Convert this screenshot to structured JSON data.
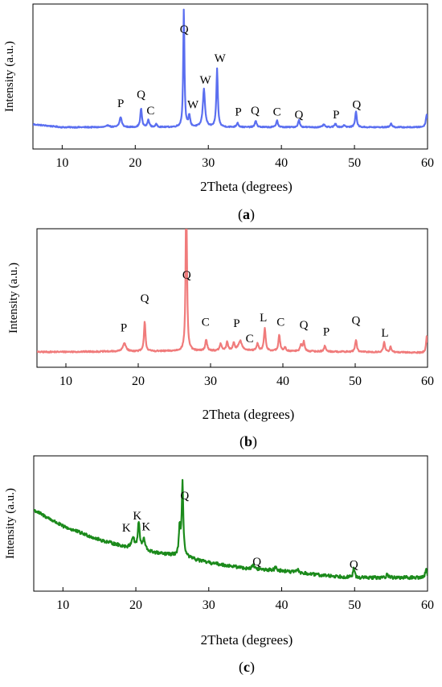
{
  "chart_data": [
    {
      "type": "line",
      "panel_label": "(a)",
      "panel_parts": [
        "(",
        "a",
        ")"
      ],
      "xlabel": "2Theta (degrees)",
      "ylabel": "Intensity (a.u.)",
      "xlim": [
        6,
        60
      ],
      "x_ticks": [
        10,
        20,
        30,
        40,
        50,
        60
      ],
      "color": "#5b6ff0",
      "baseline": 0.15,
      "noise": 0.004,
      "background": [
        [
          6,
          0.02
        ],
        [
          10,
          0.0
        ],
        [
          60,
          0.0
        ]
      ],
      "peaks": [
        {
          "x": 16.3,
          "h": 0.015,
          "w": 0.2
        },
        {
          "x": 18.0,
          "h": 0.07,
          "w": 0.18
        },
        {
          "x": 20.8,
          "h": 0.13,
          "w": 0.13
        },
        {
          "x": 21.8,
          "h": 0.05,
          "w": 0.15
        },
        {
          "x": 22.9,
          "h": 0.02,
          "w": 0.15
        },
        {
          "x": 26.65,
          "h": 0.82,
          "w": 0.1
        },
        {
          "x": 27.4,
          "h": 0.08,
          "w": 0.13
        },
        {
          "x": 29.4,
          "h": 0.26,
          "w": 0.18
        },
        {
          "x": 31.2,
          "h": 0.4,
          "w": 0.12
        },
        {
          "x": 34.0,
          "h": 0.03,
          "w": 0.15
        },
        {
          "x": 36.5,
          "h": 0.045,
          "w": 0.14
        },
        {
          "x": 39.4,
          "h": 0.05,
          "w": 0.13
        },
        {
          "x": 42.4,
          "h": 0.05,
          "w": 0.14
        },
        {
          "x": 45.8,
          "h": 0.02,
          "w": 0.15
        },
        {
          "x": 47.4,
          "h": 0.025,
          "w": 0.15
        },
        {
          "x": 48.6,
          "h": 0.015,
          "w": 0.15
        },
        {
          "x": 50.2,
          "h": 0.11,
          "w": 0.13
        },
        {
          "x": 55.0,
          "h": 0.025,
          "w": 0.15
        },
        {
          "x": 59.9,
          "h": 0.09,
          "w": 0.15
        }
      ],
      "clip_top": 0.97,
      "annotations": [
        {
          "text": "P",
          "x": 18.0,
          "y": 0.29
        },
        {
          "text": "Q",
          "x": 20.8,
          "y": 0.35
        },
        {
          "text": "C",
          "x": 22.1,
          "y": 0.24
        },
        {
          "text": "Q",
          "x": 26.7,
          "y": 0.8
        },
        {
          "text": "W",
          "x": 27.9,
          "y": 0.28
        },
        {
          "text": "W",
          "x": 29.6,
          "y": 0.45
        },
        {
          "text": "W",
          "x": 31.6,
          "y": 0.6
        },
        {
          "text": "P",
          "x": 34.1,
          "y": 0.23
        },
        {
          "text": "Q",
          "x": 36.4,
          "y": 0.24
        },
        {
          "text": "C",
          "x": 39.4,
          "y": 0.23
        },
        {
          "text": "Q",
          "x": 42.4,
          "y": 0.21
        },
        {
          "text": "P",
          "x": 47.5,
          "y": 0.21
        },
        {
          "text": "Q",
          "x": 50.3,
          "y": 0.28
        }
      ]
    },
    {
      "type": "line",
      "panel_label": "(b)",
      "panel_parts": [
        "(",
        "b",
        ")"
      ],
      "xlabel": "2Theta (degrees)",
      "ylabel": "Intensity (a.u.)",
      "xlim": [
        6,
        60
      ],
      "x_ticks": [
        10,
        20,
        30,
        40,
        50,
        60
      ],
      "color": "#f07b7b",
      "baseline": 0.1,
      "noise": 0.005,
      "background": [
        [
          6,
          0.01
        ],
        [
          20,
          0.015
        ],
        [
          34,
          0.02
        ],
        [
          60,
          0.005
        ]
      ],
      "peaks": [
        {
          "x": 18.1,
          "h": 0.06,
          "w": 0.25
        },
        {
          "x": 20.9,
          "h": 0.22,
          "w": 0.12
        },
        {
          "x": 26.65,
          "h": 1.3,
          "w": 0.1
        },
        {
          "x": 29.4,
          "h": 0.08,
          "w": 0.15
        },
        {
          "x": 31.4,
          "h": 0.05,
          "w": 0.15
        },
        {
          "x": 32.3,
          "h": 0.06,
          "w": 0.15
        },
        {
          "x": 33.2,
          "h": 0.05,
          "w": 0.15
        },
        {
          "x": 34.1,
          "h": 0.07,
          "w": 0.3
        },
        {
          "x": 36.5,
          "h": 0.05,
          "w": 0.15
        },
        {
          "x": 37.5,
          "h": 0.16,
          "w": 0.14
        },
        {
          "x": 39.5,
          "h": 0.12,
          "w": 0.13
        },
        {
          "x": 40.3,
          "h": 0.03,
          "w": 0.13
        },
        {
          "x": 42.5,
          "h": 0.05,
          "w": 0.13
        },
        {
          "x": 42.9,
          "h": 0.07,
          "w": 0.13
        },
        {
          "x": 45.8,
          "h": 0.04,
          "w": 0.15
        },
        {
          "x": 50.1,
          "h": 0.09,
          "w": 0.13
        },
        {
          "x": 54.0,
          "h": 0.07,
          "w": 0.14
        },
        {
          "x": 54.9,
          "h": 0.04,
          "w": 0.14
        },
        {
          "x": 59.9,
          "h": 0.12,
          "w": 0.12
        }
      ],
      "clip_top": 1.0,
      "annotations": [
        {
          "text": "P",
          "x": 18.0,
          "y": 0.26
        },
        {
          "text": "Q",
          "x": 20.9,
          "y": 0.47
        },
        {
          "text": "Q",
          "x": 26.7,
          "y": 0.64
        },
        {
          "text": "C",
          "x": 29.3,
          "y": 0.3
        },
        {
          "text": "P",
          "x": 33.6,
          "y": 0.29
        },
        {
          "text": "C",
          "x": 35.4,
          "y": 0.18
        },
        {
          "text": "L",
          "x": 37.3,
          "y": 0.33
        },
        {
          "text": "C",
          "x": 39.7,
          "y": 0.3
        },
        {
          "text": "Q",
          "x": 42.9,
          "y": 0.28
        },
        {
          "text": "P",
          "x": 46.0,
          "y": 0.23
        },
        {
          "text": "Q",
          "x": 50.1,
          "y": 0.31
        },
        {
          "text": "L",
          "x": 54.1,
          "y": 0.22
        }
      ]
    },
    {
      "type": "line",
      "panel_label": "(c)",
      "panel_parts": [
        "(",
        "c",
        ")"
      ],
      "xlabel": "2Theta (degrees)",
      "ylabel": "Intensity (a.u.)",
      "xlim": [
        6,
        60
      ],
      "x_ticks": [
        10,
        20,
        30,
        40,
        50,
        60
      ],
      "color": "#1b8a1b",
      "baseline": 0.08,
      "noise": 0.012,
      "background": [
        [
          6,
          0.52
        ],
        [
          10,
          0.4
        ],
        [
          15,
          0.3
        ],
        [
          19,
          0.24
        ],
        [
          23,
          0.2
        ],
        [
          26,
          0.18
        ],
        [
          30,
          0.13
        ],
        [
          35,
          0.09
        ],
        [
          40,
          0.07
        ],
        [
          45,
          0.04
        ],
        [
          50,
          0.02
        ],
        [
          60,
          0.02
        ]
      ],
      "peaks": [
        {
          "x": 19.6,
          "h": 0.08,
          "w": 0.25
        },
        {
          "x": 20.4,
          "h": 0.2,
          "w": 0.15
        },
        {
          "x": 21.1,
          "h": 0.08,
          "w": 0.2
        },
        {
          "x": 26.4,
          "h": 0.54,
          "w": 0.13
        },
        {
          "x": 26.0,
          "h": 0.2,
          "w": 0.12
        },
        {
          "x": 36.1,
          "h": 0.03,
          "w": 0.15
        },
        {
          "x": 39.2,
          "h": 0.03,
          "w": 0.15
        },
        {
          "x": 42.2,
          "h": 0.025,
          "w": 0.15
        },
        {
          "x": 49.9,
          "h": 0.07,
          "w": 0.13
        },
        {
          "x": 54.5,
          "h": 0.03,
          "w": 0.15
        },
        {
          "x": 59.8,
          "h": 0.06,
          "w": 0.15
        }
      ],
      "clip_top": 1.0,
      "annotations": [
        {
          "text": "K",
          "x": 18.7,
          "y": 0.44
        },
        {
          "text": "K",
          "x": 20.2,
          "y": 0.53
        },
        {
          "text": "K",
          "x": 21.4,
          "y": 0.45
        },
        {
          "text": "Q",
          "x": 26.7,
          "y": 0.68
        },
        {
          "text": "Q",
          "x": 36.6,
          "y": 0.19
        },
        {
          "text": "Q",
          "x": 49.9,
          "y": 0.17
        }
      ]
    }
  ]
}
